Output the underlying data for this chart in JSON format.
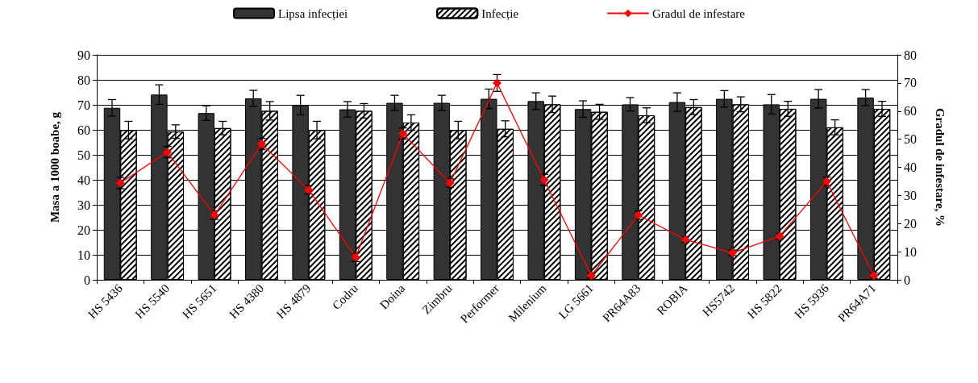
{
  "chart_data": {
    "type": "bar",
    "categories": [
      "HS 5436",
      "HS 5540",
      "HS 5651",
      "HS 4380",
      "HS 4879",
      "Codru",
      "Doina",
      "Zimbru",
      "Performer",
      "Milenium",
      "LG 5661",
      "PR64A83",
      "ROBIA",
      "HS5742",
      "HS 5822",
      "HS 5936",
      "PR64A71"
    ],
    "series": [
      {
        "name": "Lipsa infecției",
        "color": "#333333",
        "values": [
          68.8,
          74.1,
          66.7,
          72.6,
          69.9,
          68.2,
          70.8,
          70.8,
          72.4,
          71.5,
          68.3,
          70.2,
          71.1,
          72.4,
          70.2,
          72.4,
          72.9
        ],
        "errors": [
          3.3,
          3.9,
          2.9,
          3.2,
          3.9,
          3.1,
          3,
          3,
          3.9,
          3.3,
          3.3,
          2.7,
          3.7,
          3.3,
          3.9,
          3.7,
          3.2
        ]
      },
      {
        "name": "Infecție",
        "color": "#ffffff",
        "values": [
          59.9,
          59.3,
          60.7,
          67.6,
          59.9,
          67.6,
          62.9,
          59.9,
          60.4,
          70.2,
          67.2,
          65.8,
          69.1,
          70.2,
          68.4,
          61,
          68.4
        ],
        "errors": [
          3.5,
          2.7,
          2.7,
          3.7,
          3.5,
          2.9,
          3.1,
          3.5,
          3.2,
          3.3,
          3,
          3,
          3,
          3,
          3,
          3,
          3
        ]
      },
      {
        "name": "Gradul de infestare",
        "type": "line",
        "axis": "y2",
        "color": "#ff0000",
        "marker": "diamond",
        "line_style": "solid",
        "values": [
          34.4,
          45.4,
          23,
          48.3,
          32,
          8,
          52,
          34.4,
          70,
          35.5,
          1.5,
          23,
          14.3,
          9.6,
          15.5,
          35,
          1.5
        ],
        "errors": [
          2,
          2,
          1.5,
          2,
          1.5,
          1.5,
          2,
          1.5,
          3,
          2,
          1,
          1.5,
          1,
          1,
          1,
          1.5,
          1
        ]
      }
    ],
    "ylabel": "Masa a 1000 boabe, g",
    "y2label": "Gradul de infestare, %",
    "ylim": [
      0,
      90
    ],
    "yticks": [
      0,
      10,
      20,
      30,
      40,
      50,
      60,
      70,
      80,
      90
    ],
    "y2lim": [
      0,
      80
    ],
    "y2ticks": [
      0,
      10,
      20,
      30,
      40,
      50,
      60,
      70,
      80
    ],
    "grid": "y",
    "legend": "top"
  }
}
